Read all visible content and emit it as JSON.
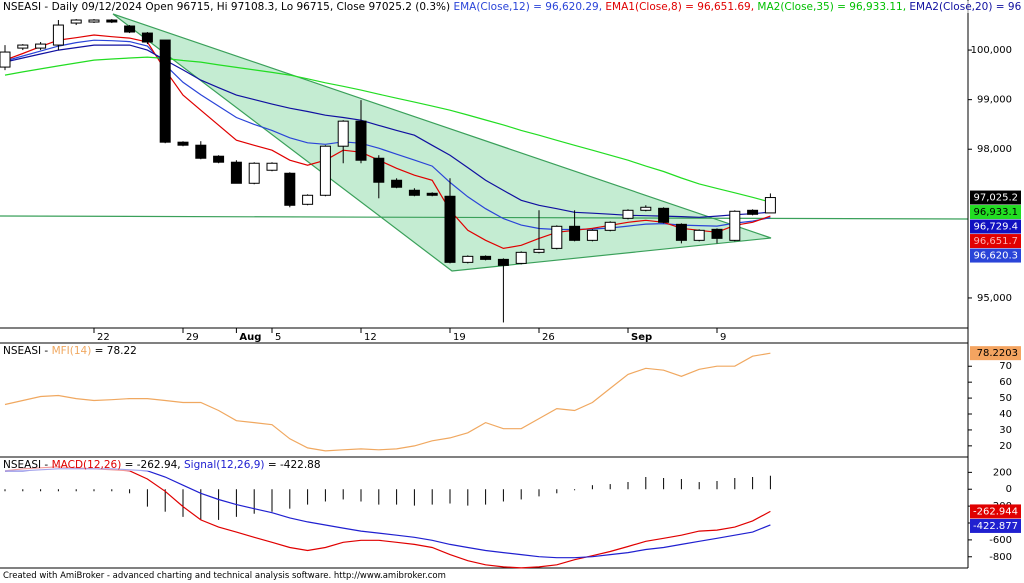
{
  "chart_data": [
    {
      "type": "candlestick",
      "header": [
        {
          "text": "NSEASI - Daily 09/12/2024 Open 96715, Hi 97108.3, Lo 96715, Close 97025.2 (0.3%) ",
          "color": "#000000"
        },
        {
          "text": "EMA(Close,12) = 96,620.29, ",
          "color": "#2a44d8"
        },
        {
          "text": "EMA1(Close,8) = 96,651.69, ",
          "color": "#e00000"
        },
        {
          "text": "MA2(Close,35) = 96,933.11, ",
          "color": "#00c000"
        },
        {
          "text": "EMA2(Close,20) = 96",
          "color": "#1010a0"
        }
      ],
      "categories": [
        null,
        null,
        null,
        null,
        null,
        "22",
        null,
        null,
        null,
        null,
        "29",
        null,
        null,
        "Aug",
        null,
        "5",
        null,
        null,
        null,
        null,
        "12",
        null,
        null,
        null,
        null,
        "19",
        null,
        null,
        null,
        null,
        "26",
        null,
        null,
        null,
        null,
        "Sep",
        null,
        null,
        null,
        null,
        "9",
        null,
        null,
        null
      ],
      "open": [
        99657,
        100040,
        100040,
        100101,
        100545,
        100566,
        100606,
        100485,
        100343,
        100202,
        98142,
        98081,
        97859,
        97738,
        97313,
        97576,
        97515,
        96889,
        97071,
        98061,
        98566,
        97818,
        97374,
        97172,
        97111,
        97051,
        95718,
        95839,
        95778,
        95697,
        95920,
        96000,
        96445,
        96162,
        96364,
        96606,
        96768,
        96808,
        96485,
        96162,
        96384,
        96162,
        96768,
        96715
      ],
      "high": [
        100101,
        100121,
        100162,
        100606,
        100626,
        100626,
        100626,
        100505,
        100364,
        100202,
        98162,
        98162,
        97879,
        97778,
        97738,
        97738,
        97535,
        97091,
        98081,
        98586,
        98990,
        97879,
        97414,
        97213,
        97131,
        97414,
        95859,
        95859,
        95799,
        95940,
        96768,
        96465,
        96768,
        96384,
        96546,
        96788,
        96869,
        96829,
        96505,
        96384,
        96404,
        96768,
        96788,
        97108.3
      ],
      "low": [
        99596,
        100000,
        100000,
        100000,
        100505,
        100545,
        100545,
        100343,
        100121,
        98121,
        98061,
        97798,
        97717,
        97313,
        97293,
        97556,
        96829,
        96869,
        97051,
        97717,
        97717,
        97010,
        97213,
        97051,
        97051,
        95697,
        95697,
        95758,
        94506,
        95677,
        95900,
        95980,
        96142,
        96142,
        96344,
        96586,
        96748,
        96506,
        96101,
        96142,
        96101,
        96142,
        96666,
        96715
      ],
      "close": [
        99960,
        100101,
        100121,
        100505,
        100606,
        100606,
        100566,
        100364,
        100162,
        98142,
        98081,
        97818,
        97738,
        97313,
        97717,
        97717,
        96869,
        97071,
        98061,
        98566,
        97778,
        97334,
        97233,
        97071,
        97071,
        95718,
        95839,
        95778,
        95657,
        95920,
        95980,
        96445,
        96162,
        96364,
        96526,
        96768,
        96829,
        96526,
        96162,
        96364,
        96202,
        96748,
        96687,
        97025.2
      ],
      "series": [
        {
          "color": "#2a44d8",
          "values": [
            99780,
            99880,
            99980,
            100080,
            100150,
            100200,
            100190,
            100170,
            100080,
            99700,
            99350,
            99100,
            98870,
            98640,
            98500,
            98380,
            98230,
            98130,
            98100,
            98150,
            98120,
            98020,
            97900,
            97780,
            97660,
            97330,
            97040,
            96800,
            96600,
            96470,
            96400,
            96380,
            96380,
            96390,
            96410,
            96450,
            96490,
            96500,
            96470,
            96460,
            96450,
            96510,
            96550,
            96620.29
          ]
        },
        {
          "color": "#e00000",
          "values": [
            99798,
            99930,
            100070,
            100202,
            100250,
            100303,
            100270,
            100242,
            100162,
            99596,
            99091,
            98788,
            98485,
            98182,
            98080,
            97980,
            97778,
            97677,
            97778,
            97980,
            97940,
            97778,
            97616,
            97475,
            97374,
            96768,
            96364,
            96162,
            96000,
            96061,
            96202,
            96324,
            96364,
            96404,
            96465,
            96526,
            96566,
            96526,
            96404,
            96364,
            96324,
            96465,
            96526,
            96651.69
          ]
        },
        {
          "color": "#22dd22",
          "values": [
            99495,
            99560,
            99620,
            99680,
            99740,
            99798,
            99820,
            99840,
            99859,
            99830,
            99790,
            99758,
            99700,
            99650,
            99600,
            99550,
            99495,
            99420,
            99340,
            99270,
            99192,
            99110,
            99030,
            98950,
            98870,
            98788,
            98690,
            98590,
            98490,
            98380,
            98283,
            98180,
            98080,
            97980,
            97880,
            97778,
            97660,
            97550,
            97420,
            97300,
            97210,
            97120,
            97030,
            96933.11
          ]
        },
        {
          "color": "#1010a0",
          "values": [
            99758,
            99840,
            99920,
            100000,
            100050,
            100101,
            100101,
            100101,
            100000,
            99798,
            99600,
            99394,
            99240,
            99091,
            99000,
            98910,
            98828,
            98760,
            98687,
            98640,
            98586,
            98480,
            98380,
            98283,
            98080,
            97879,
            97630,
            97374,
            97170,
            96970,
            96869,
            96800,
            96728,
            96710,
            96690,
            96667,
            96660,
            96650,
            96640,
            96627,
            96650,
            96680,
            96700,
            96729.4
          ]
        }
      ],
      "ylim": [
        94414,
        101010
      ],
      "yticks": [
        {
          "value": 95000,
          "label": "95,000"
        },
        {
          "value": 98000,
          "label": "98,000"
        },
        {
          "value": 99000,
          "label": "99,000"
        },
        {
          "value": 100000,
          "label": "100,000"
        }
      ],
      "price_labels": [
        {
          "value": 97025.2,
          "label": "97,025.2",
          "color": "#000000",
          "text_color": "#ffffff"
        },
        {
          "value": 96933.1,
          "label": "96,933.1",
          "color": "#22dd22",
          "text_color": "#000000"
        },
        {
          "value": 96729.4,
          "label": "96,729.4",
          "color": "#1010c0",
          "text_color": "#ffffff"
        },
        {
          "value": 96651.7,
          "label": "96,651.7",
          "color": "#e00000",
          "text_color": "#ffb0b0"
        },
        {
          "value": 96620.3,
          "label": "96,620.3",
          "color": "#2a44d8",
          "text_color": "#ffffff"
        }
      ]
    },
    {
      "type": "line",
      "header": [
        {
          "text": "NSEASI - ",
          "color": "#000000"
        },
        {
          "text": "MFI(14)",
          "color": "#f0a860"
        },
        {
          "text": " = 78.22",
          "color": "#000000"
        }
      ],
      "series": [
        {
          "color": "#f0a860",
          "values": [
            46,
            48.5,
            51,
            51.6,
            49.7,
            48.5,
            49,
            49.7,
            49.7,
            48.5,
            47.2,
            47.2,
            42.2,
            35.8,
            34.6,
            33.3,
            24.4,
            18.7,
            16.8,
            17.5,
            18.1,
            17.5,
            18.1,
            20,
            23.2,
            25,
            28.2,
            34.6,
            30.8,
            30.8,
            37.1,
            43.4,
            42.2,
            47.2,
            56.1,
            64.9,
            68.7,
            67.5,
            63.7,
            68.1,
            70,
            70,
            76.3,
            78.22
          ]
        }
      ],
      "ylim": [
        13,
        84.6
      ],
      "yticks": [
        20,
        30,
        40,
        50,
        60,
        70
      ],
      "price_labels": [
        {
          "value": 78.2203,
          "label": "78.2203",
          "color": "#f4a460",
          "text_color": "#000000"
        }
      ]
    },
    {
      "type": "macd",
      "header": [
        {
          "text": "NSEASI - ",
          "color": "#000000"
        },
        {
          "text": "MACD(12,26)",
          "color": "#e00000"
        },
        {
          "text": " = -262.94, ",
          "color": "#000000"
        },
        {
          "text": "Signal(12,26,9)",
          "color": "#2020d0"
        },
        {
          "text": " = -422.88",
          "color": "#000000"
        }
      ],
      "histogram": [
        -24,
        -24,
        -24,
        -24,
        -24,
        -24,
        -24,
        -48,
        -206,
        -266,
        -327,
        -363,
        -363,
        -327,
        -290,
        -266,
        -230,
        -182,
        -145,
        -121,
        -145,
        -182,
        -182,
        -194,
        -182,
        -169,
        -194,
        -182,
        -145,
        -121,
        -85,
        -48,
        -12,
        48,
        61,
        85,
        145,
        133,
        121,
        85,
        97,
        133,
        145,
        159.94
      ],
      "series": [
        {
          "color": "#e00000",
          "values": [
            218,
            242,
            254,
            266,
            254,
            242,
            230,
            218,
            121,
            -24,
            -206,
            -363,
            -448,
            -508,
            -569,
            -629,
            -690,
            -726,
            -690,
            -629,
            -605,
            -605,
            -629,
            -653,
            -690,
            -774,
            -847,
            -895,
            -920,
            -932,
            -920,
            -895,
            -835,
            -787,
            -738,
            -678,
            -617,
            -581,
            -545,
            -496,
            -484,
            -448,
            -375,
            -262.94
          ]
        },
        {
          "color": "#2020d0",
          "values": [
            218,
            218,
            230,
            242,
            242,
            242,
            242,
            230,
            218,
            145,
            48,
            -48,
            -121,
            -182,
            -230,
            -278,
            -339,
            -387,
            -424,
            -460,
            -496,
            -520,
            -545,
            -569,
            -605,
            -653,
            -690,
            -726,
            -750,
            -774,
            -799,
            -811,
            -811,
            -799,
            -774,
            -750,
            -714,
            -690,
            -653,
            -617,
            -581,
            -545,
            -508,
            -422.88
          ]
        }
      ],
      "ylim": [
        -933,
        370
      ],
      "yticks": [
        -800,
        -600,
        -400,
        -200,
        0,
        200
      ],
      "price_labels": [
        {
          "value": -262.944,
          "label": "-262.944",
          "color": "#e00000",
          "text_color": "#ffffff"
        },
        {
          "value": -422.877,
          "label": "-422.877",
          "color": "#2020d0",
          "text_color": "#ffffff"
        }
      ]
    }
  ],
  "footer": "Created with AmiBroker - advanced charting and technical analysis software. http://www.amibroker.com"
}
